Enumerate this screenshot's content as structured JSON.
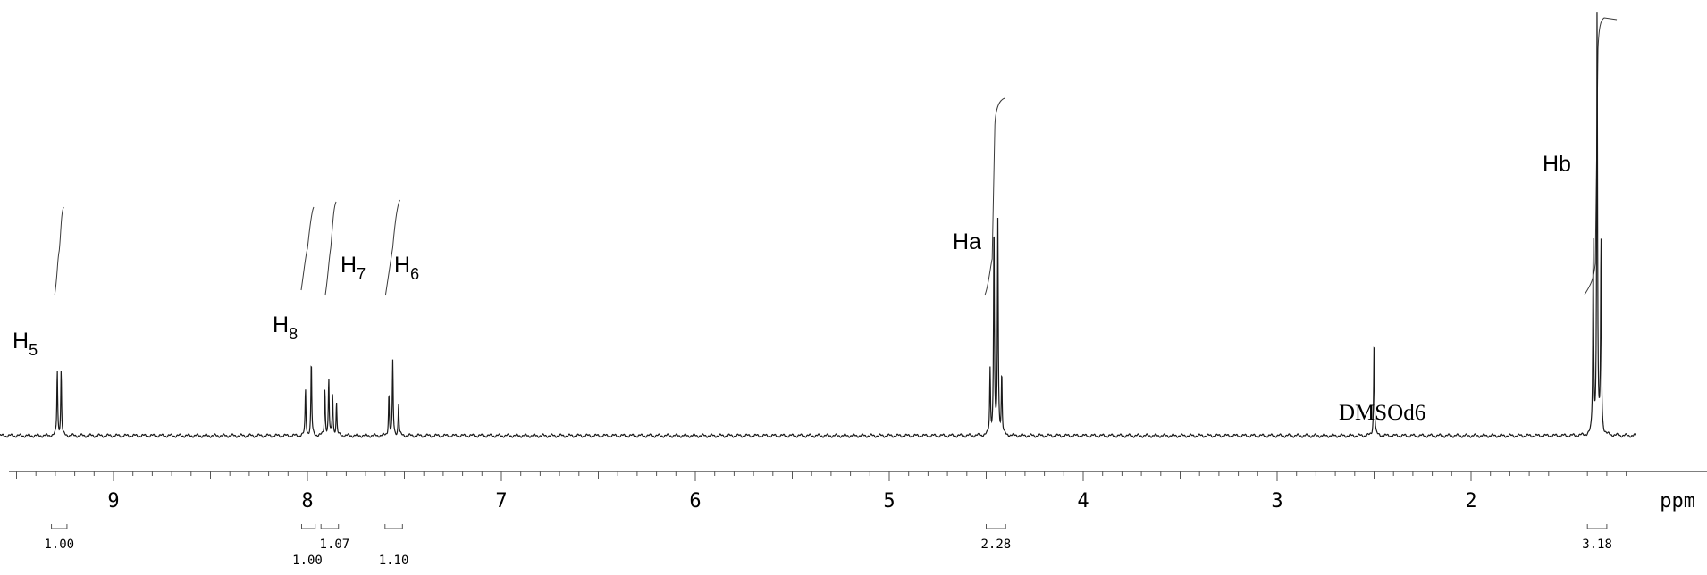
{
  "chart_data": {
    "type": "line",
    "title": "",
    "xlabel": "ppm",
    "ylabel": "",
    "xlim": [
      9.55,
      1.2
    ],
    "reversed_x": true,
    "grid": false,
    "x_ticks": [
      "9",
      "8",
      "7",
      "6",
      "5",
      "4",
      "3",
      "2"
    ],
    "x_tick_values": [
      9,
      8,
      7,
      6,
      5,
      4,
      3,
      2
    ],
    "series": [
      {
        "peaks": [
          {
            "x": 9.29,
            "y": 0.14
          },
          {
            "x": 9.27,
            "y": 0.14
          },
          {
            "x": 8.01,
            "y": 0.1
          },
          {
            "x": 7.98,
            "y": 0.16
          },
          {
            "x": 7.91,
            "y": 0.1
          },
          {
            "x": 7.89,
            "y": 0.12
          },
          {
            "x": 7.87,
            "y": 0.09
          },
          {
            "x": 7.85,
            "y": 0.07
          },
          {
            "x": 7.58,
            "y": 0.09
          },
          {
            "x": 7.56,
            "y": 0.16
          },
          {
            "x": 7.53,
            "y": 0.07
          },
          {
            "x": 4.48,
            "y": 0.14
          },
          {
            "x": 4.46,
            "y": 0.46
          },
          {
            "x": 4.44,
            "y": 0.46
          },
          {
            "x": 4.42,
            "y": 0.13
          },
          {
            "x": 2.5,
            "y": 0.21
          },
          {
            "x": 1.37,
            "y": 0.42
          },
          {
            "x": 1.35,
            "y": 0.92
          },
          {
            "x": 1.33,
            "y": 0.42
          }
        ]
      }
    ],
    "annotations": [
      {
        "label": "H",
        "sub": "5",
        "x": 9.29
      },
      {
        "label": "H",
        "sub": "8",
        "x": 7.99
      },
      {
        "label": "H",
        "sub": "7",
        "x": 7.88
      },
      {
        "label": "H",
        "sub": "6",
        "x": 7.56
      },
      {
        "label": "Ha",
        "sub": "",
        "x": 4.46
      },
      {
        "label": "DMSOd6",
        "sub": "",
        "x": 2.5
      },
      {
        "label": "Hb",
        "sub": "",
        "x": 1.35
      }
    ],
    "integrals": [
      {
        "from": 9.32,
        "to": 9.24,
        "value": "1.00"
      },
      {
        "from": 8.03,
        "to": 7.96,
        "value": "1.00"
      },
      {
        "from": 7.93,
        "to": 7.84,
        "value": "1.07"
      },
      {
        "from": 7.6,
        "to": 7.51,
        "value": "1.10"
      },
      {
        "from": 4.5,
        "to": 4.4,
        "value": "2.28"
      },
      {
        "from": 1.4,
        "to": 1.3,
        "value": "3.18"
      }
    ]
  },
  "colors": {
    "trace": "#1a1a1a",
    "integral": "#3a3a3a",
    "axis": "#555555",
    "background": "#ffffff"
  }
}
